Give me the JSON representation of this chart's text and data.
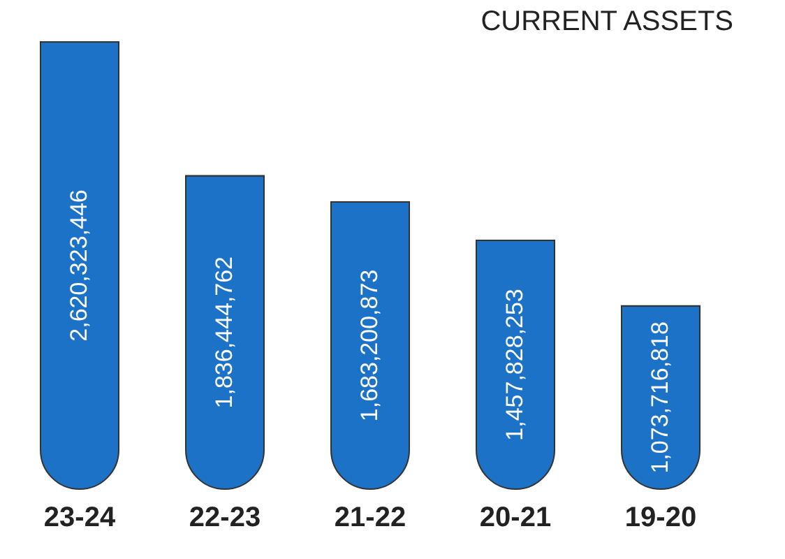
{
  "chart_data": {
    "type": "bar",
    "title": "CURRENT ASSETS",
    "categories": [
      "23-24",
      "22-23",
      "21-22",
      "20-21",
      "19-20"
    ],
    "values": [
      2620323446,
      1836444762,
      1683200873,
      1457828253,
      1073716818
    ],
    "value_labels": [
      "2,620,323,446",
      "1,836,444,762",
      "1,683,200,873",
      "1,457,828,253",
      "1,073,716,818"
    ],
    "color": "#1b72c6",
    "grid": false
  }
}
